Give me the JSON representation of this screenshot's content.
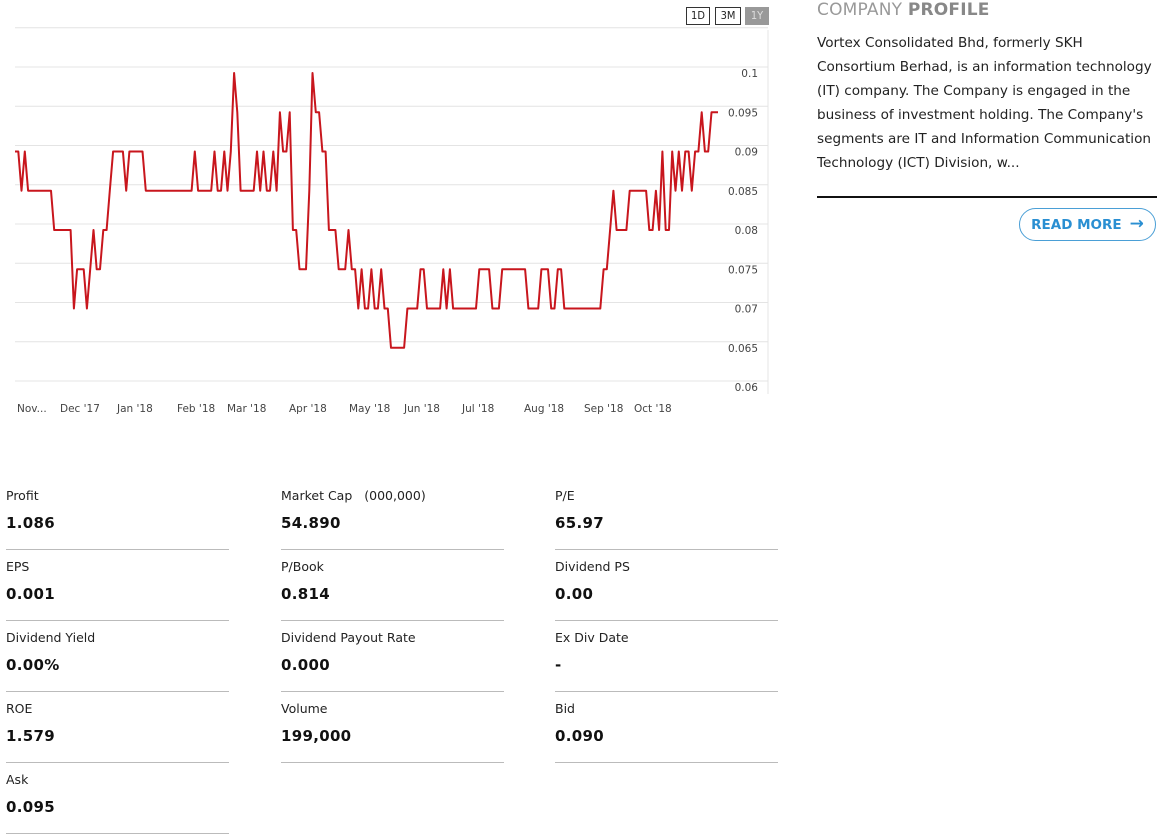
{
  "range_buttons": [
    {
      "label": "1D",
      "active": false
    },
    {
      "label": "3M",
      "active": false
    },
    {
      "label": "1Y",
      "active": true
    }
  ],
  "profile": {
    "title_light": "COMPANY",
    "title_bold": "PROFILE",
    "text": "Vortex Consolidated Bhd, formerly SKH Consortium Berhad, is an information technology (IT) company. The Company is engaged in the business of investment holding. The Company's segments are IT and Information Communication Technology (ICT) Division, w...",
    "read_more": "READ MORE",
    "read_more_icon": "arrow-right-icon"
  },
  "stats": [
    {
      "label": "Profit",
      "value": "1.086"
    },
    {
      "label": "Market Cap",
      "unit": "(000,000)",
      "value": "54.890"
    },
    {
      "label": "P/E",
      "value": "65.97"
    },
    {
      "label": "EPS",
      "value": "0.001"
    },
    {
      "label": "P/Book",
      "value": "0.814"
    },
    {
      "label": "Dividend PS",
      "value": "0.00"
    },
    {
      "label": "Dividend Yield",
      "value": "0.00%"
    },
    {
      "label": "Dividend Payout Rate",
      "value": "0.000"
    },
    {
      "label": "Ex Div Date",
      "value": "-"
    },
    {
      "label": "ROE",
      "value": "1.579"
    },
    {
      "label": "Volume",
      "value": "199,000"
    },
    {
      "label": "Bid",
      "value": "0.090"
    },
    {
      "label": "Ask",
      "value": "0.095"
    }
  ],
  "chart_data": {
    "type": "line",
    "title": "",
    "xlabel": "",
    "ylabel": "",
    "ylim": [
      0.06,
      0.1
    ],
    "yticks": [
      "0.1",
      "0.095",
      "0.09",
      "0.085",
      "0.08",
      "0.075",
      "0.07",
      "0.065",
      "0.06"
    ],
    "xtick_labels": [
      "Nov...",
      "Dec '17",
      "Jan '18",
      "Feb '18",
      "Mar '18",
      "Apr '18",
      "May '18",
      "Jun '18",
      "Jul '18",
      "Aug '18",
      "Sep '18",
      "Oct '18"
    ],
    "grid": true,
    "line_color": "#c8161d",
    "series": [
      {
        "values": [
          0.09,
          0.09,
          0.085,
          0.09,
          0.085,
          0.085,
          0.085,
          0.085,
          0.085,
          0.085,
          0.085,
          0.085,
          0.08,
          0.08,
          0.08,
          0.08,
          0.08,
          0.08,
          0.07,
          0.075,
          0.075,
          0.075,
          0.07,
          0.075,
          0.08,
          0.075,
          0.075,
          0.08,
          0.08,
          0.085,
          0.09,
          0.09,
          0.09,
          0.09,
          0.085,
          0.09,
          0.09,
          0.09,
          0.09,
          0.09,
          0.085,
          0.085,
          0.085,
          0.085,
          0.085,
          0.085,
          0.085,
          0.085,
          0.085,
          0.085,
          0.085,
          0.085,
          0.085,
          0.085,
          0.085,
          0.09,
          0.085,
          0.085,
          0.085,
          0.085,
          0.085,
          0.09,
          0.085,
          0.085,
          0.09,
          0.085,
          0.09,
          0.1,
          0.095,
          0.085,
          0.085,
          0.085,
          0.085,
          0.085,
          0.09,
          0.085,
          0.09,
          0.085,
          0.085,
          0.09,
          0.085,
          0.095,
          0.09,
          0.09,
          0.095,
          0.08,
          0.08,
          0.075,
          0.075,
          0.075,
          0.085,
          0.1,
          0.095,
          0.095,
          0.09,
          0.09,
          0.08,
          0.08,
          0.08,
          0.075,
          0.075,
          0.075,
          0.08,
          0.075,
          0.075,
          0.07,
          0.075,
          0.07,
          0.07,
          0.075,
          0.07,
          0.07,
          0.075,
          0.07,
          0.07,
          0.065,
          0.065,
          0.065,
          0.065,
          0.065,
          0.07,
          0.07,
          0.07,
          0.07,
          0.075,
          0.075,
          0.07,
          0.07,
          0.07,
          0.07,
          0.07,
          0.075,
          0.07,
          0.075,
          0.07,
          0.07,
          0.07,
          0.07,
          0.07,
          0.07,
          0.07,
          0.07,
          0.075,
          0.075,
          0.075,
          0.075,
          0.07,
          0.07,
          0.07,
          0.075,
          0.075,
          0.075,
          0.075,
          0.075,
          0.075,
          0.075,
          0.075,
          0.07,
          0.07,
          0.07,
          0.07,
          0.075,
          0.075,
          0.075,
          0.07,
          0.07,
          0.075,
          0.075,
          0.07,
          0.07,
          0.07,
          0.07,
          0.07,
          0.07,
          0.07,
          0.07,
          0.07,
          0.07,
          0.07,
          0.07,
          0.075,
          0.075,
          0.08,
          0.085,
          0.08,
          0.08,
          0.08,
          0.08,
          0.085,
          0.085,
          0.085,
          0.085,
          0.085,
          0.085,
          0.08,
          0.08,
          0.085,
          0.08,
          0.09,
          0.08,
          0.08,
          0.09,
          0.085,
          0.09,
          0.085,
          0.09,
          0.09,
          0.085,
          0.09,
          0.09,
          0.095,
          0.09,
          0.09,
          0.095,
          0.095,
          0.095
        ]
      }
    ]
  }
}
